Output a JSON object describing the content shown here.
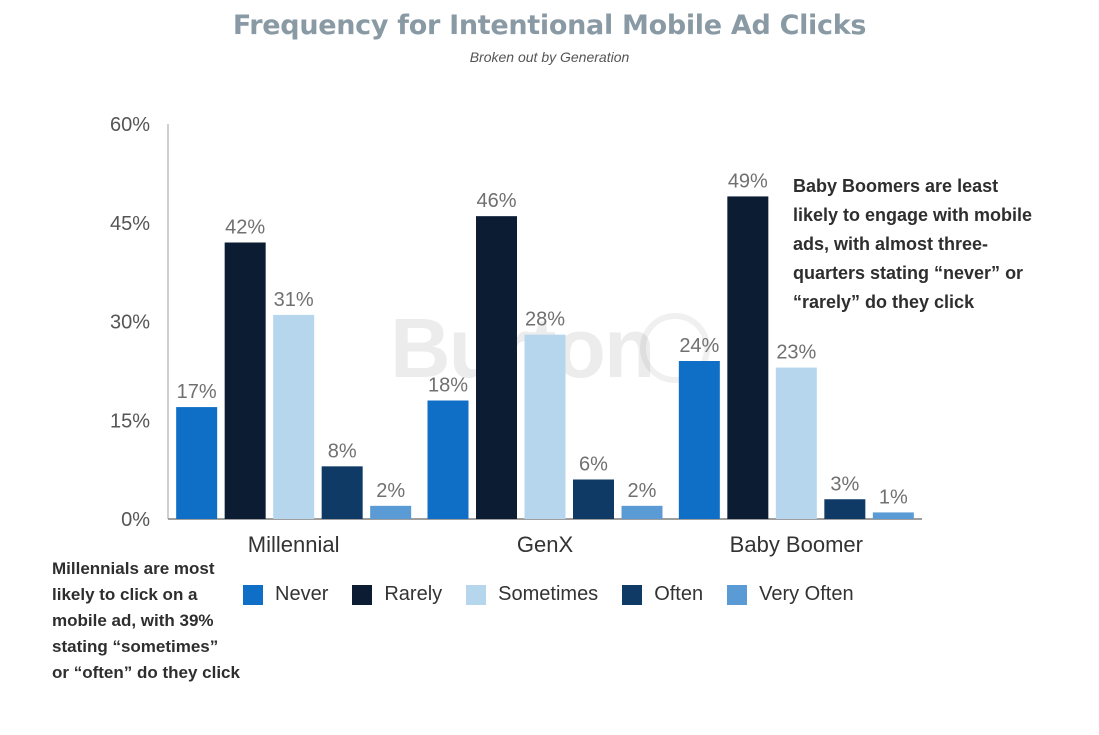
{
  "header": {
    "title": "Frequency for Intentional Mobile Ad Clicks",
    "subtitle": "Broken out by Generation"
  },
  "notes": {
    "boomers": "Baby Boomers are least\nlikely to engage with mobile\nads, with almost three-\nquarters stating “never” or\n“rarely” do they click",
    "millennials": "Millennials are most\nlikely to click on a\nmobile ad, with 39%\nstating “sometimes”\nor “often” do they click"
  },
  "watermark": "Burton",
  "chart_data": {
    "type": "bar",
    "categories": [
      "Millennial",
      "GenX",
      "Baby Boomer"
    ],
    "series": [
      {
        "name": "Never",
        "color": "#0f6fc6",
        "values": [
          17,
          18,
          24
        ]
      },
      {
        "name": "Rarely",
        "color": "#0c1c33",
        "values": [
          42,
          46,
          49
        ]
      },
      {
        "name": "Sometimes",
        "color": "#b6d6ee",
        "values": [
          31,
          28,
          23
        ]
      },
      {
        "name": "Often",
        "color": "#0f3a66",
        "values": [
          8,
          6,
          3
        ]
      },
      {
        "name": "Very Often",
        "color": "#5b9bd5",
        "values": [
          2,
          2,
          1
        ]
      }
    ],
    "value_suffix": "%",
    "ylim": [
      0,
      60
    ],
    "yticks": [
      0,
      15,
      30,
      45,
      60
    ],
    "ytick_labels": [
      "0%",
      "15%",
      "30%",
      "45%",
      "60%"
    ],
    "grid": false,
    "legend_position": "bottom"
  }
}
